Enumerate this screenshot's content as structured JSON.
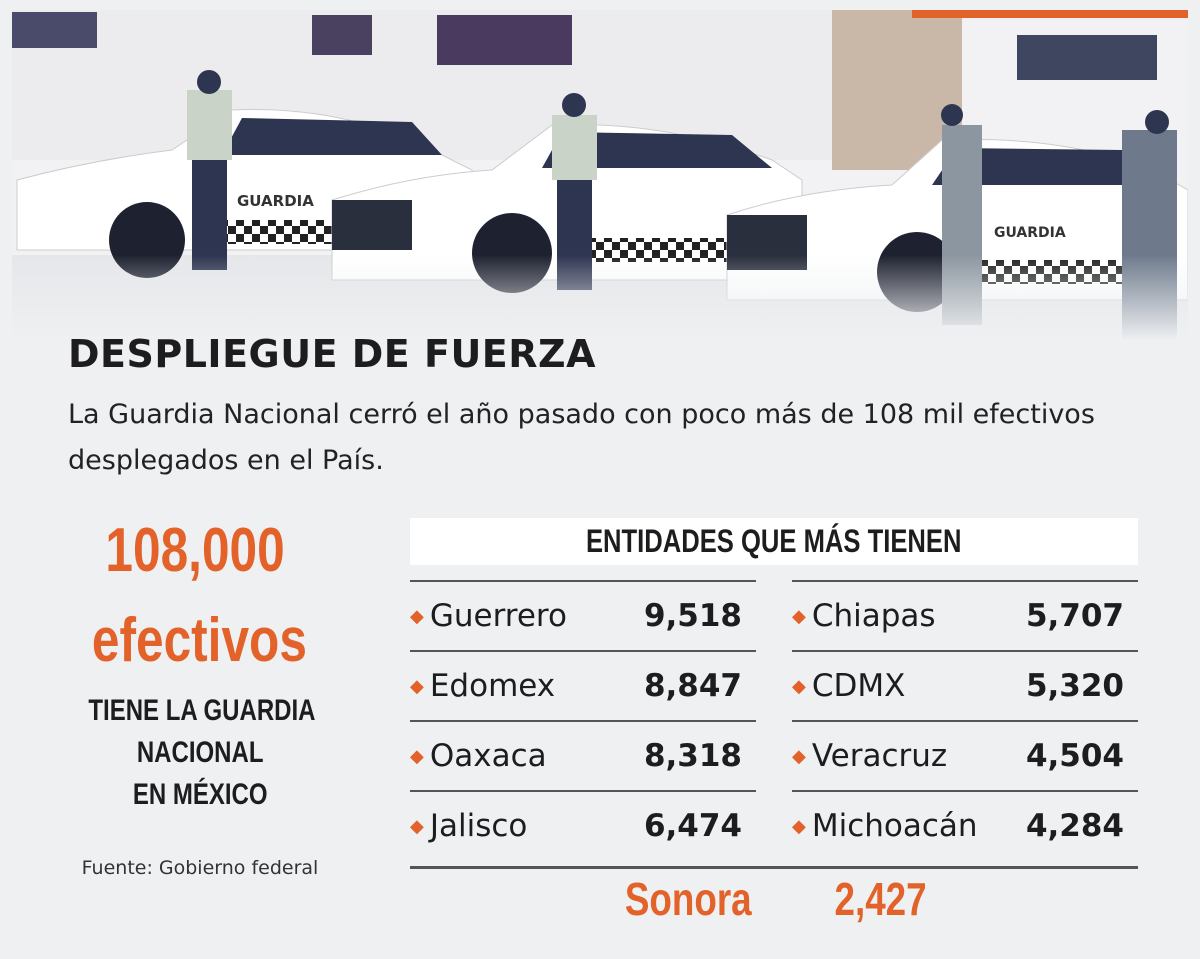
{
  "photo": {
    "vehicle_lettering": "GUARDIA"
  },
  "header": {
    "title": "DESPLIEGUE DE FUERZA",
    "subtitle": "La Guardia Nacional cerró el año pasado con poco más de 108 mil efectivos desplegados en el País."
  },
  "highlight": {
    "number": "108,000",
    "unit": "efectivos",
    "caption_lines": [
      "TIENE LA GUARDIA",
      "NACIONAL",
      "EN MÉXICO"
    ],
    "source": "Fuente: Gobierno federal"
  },
  "table": {
    "title": "ENTIDADES QUE MÁS TIENEN",
    "left": [
      {
        "state": "Guerrero",
        "value": "9,518"
      },
      {
        "state": "Edomex",
        "value": "8,847"
      },
      {
        "state": "Oaxaca",
        "value": "8,318"
      },
      {
        "state": "Jalisco",
        "value": "6,474"
      }
    ],
    "right": [
      {
        "state": "Chiapas",
        "value": "5,707"
      },
      {
        "state": "CDMX",
        "value": "5,320"
      },
      {
        "state": "Veracruz",
        "value": "4,504"
      },
      {
        "state": "Michoacán",
        "value": "4,284"
      }
    ],
    "highlight": {
      "state": "Sonora",
      "value": "2,427"
    }
  },
  "colors": {
    "accent": "#e2622a",
    "text": "#1d1d1f",
    "background": "#eef0f2"
  }
}
